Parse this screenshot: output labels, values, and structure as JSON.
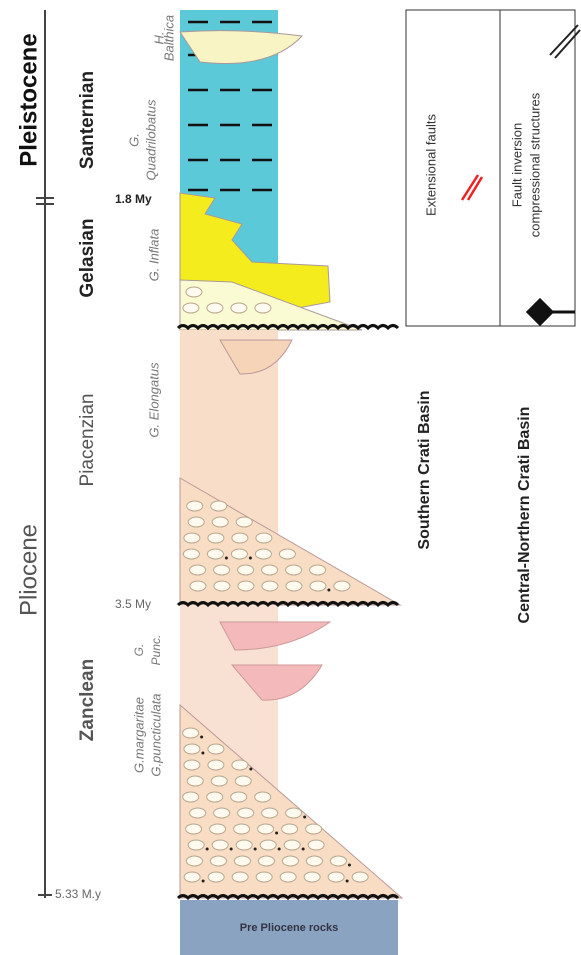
{
  "epochs": [
    "Pleistocene",
    "Pliocene"
  ],
  "stages": [
    "Santernian",
    "Gelasian",
    "Piacenzian",
    "Zanclean"
  ],
  "ages": [
    "1.8 My",
    "3.5 My",
    "5.33 M.y"
  ],
  "biozones": {
    "balthica": [
      "H.",
      "Balthica"
    ],
    "quadrilobatus": [
      "G.",
      "Quadrilobatus"
    ],
    "inflata": "G. Inflata",
    "elongatus": "G. Elongatus",
    "punc": [
      "G.",
      "Punc."
    ],
    "margaritae": [
      "G.margaritae",
      "G.puncticulata"
    ]
  },
  "basement": "Pre Pliocene rocks",
  "legend": {
    "extensional": "Extensional faults",
    "inversion": [
      "Fault inversion",
      "compressional structures"
    ]
  },
  "basins": [
    "Southern Crati Basin",
    "Central-Northern Crati Basin"
  ]
}
